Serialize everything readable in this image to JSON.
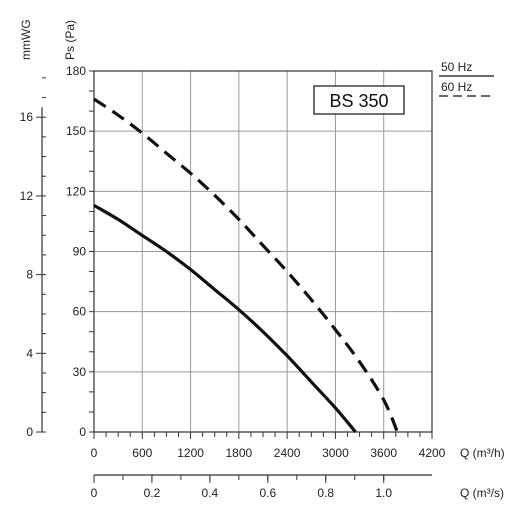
{
  "chart_data": {
    "type": "line",
    "title": "BS 350",
    "ylabel": "Ps (Pa)",
    "ylabel_secondary": "mmWG",
    "xlabel": "Q (m³/h)",
    "xlabel_secondary": "Q (m³/s)",
    "xlim": [
      0,
      4200
    ],
    "ylim": [
      0,
      180
    ],
    "x_ticks": [
      "0",
      "600",
      "1200",
      "1800",
      "2400",
      "3000",
      "3600",
      "4200"
    ],
    "y_ticks": [
      "0",
      "30",
      "60",
      "90",
      "120",
      "150",
      "180"
    ],
    "secondary_y_ticks": [
      {
        "label": "0",
        "value": 0
      },
      {
        "label": "4",
        "value": 4
      },
      {
        "label": "8",
        "value": 8
      },
      {
        "label": "12",
        "value": 12
      },
      {
        "label": "16",
        "value": 16
      }
    ],
    "secondary_y_scale_pa_per_unit": 9.81,
    "secondary_x_ticks": [
      {
        "label": "0",
        "value": 0
      },
      {
        "label": "0.2",
        "value": 0.2
      },
      {
        "label": "0.4",
        "value": 0.4
      },
      {
        "label": "0.6",
        "value": 0.6
      },
      {
        "label": "0.8",
        "value": 0.8
      },
      {
        "label": "1.0",
        "value": 1.0
      }
    ],
    "secondary_x_scale_m3h_per_unit": 3600,
    "grid": true,
    "legend_position": "top-right",
    "series": [
      {
        "name": "50 Hz",
        "style": "solid",
        "color": "#111111",
        "x": [
          0,
          300,
          600,
          900,
          1200,
          1500,
          1800,
          2100,
          2400,
          2700,
          3000,
          3250
        ],
        "y": [
          113,
          106,
          98,
          90,
          81,
          71,
          61,
          50,
          38,
          25,
          12,
          0
        ]
      },
      {
        "name": "60 Hz",
        "style": "dashed",
        "color": "#111111",
        "x": [
          0,
          300,
          600,
          900,
          1200,
          1500,
          1800,
          2100,
          2400,
          2700,
          3000,
          3300,
          3600,
          3770
        ],
        "y": [
          166,
          158,
          149,
          139,
          129,
          118,
          106,
          93,
          80,
          66,
          51,
          35,
          16,
          0
        ]
      }
    ]
  }
}
